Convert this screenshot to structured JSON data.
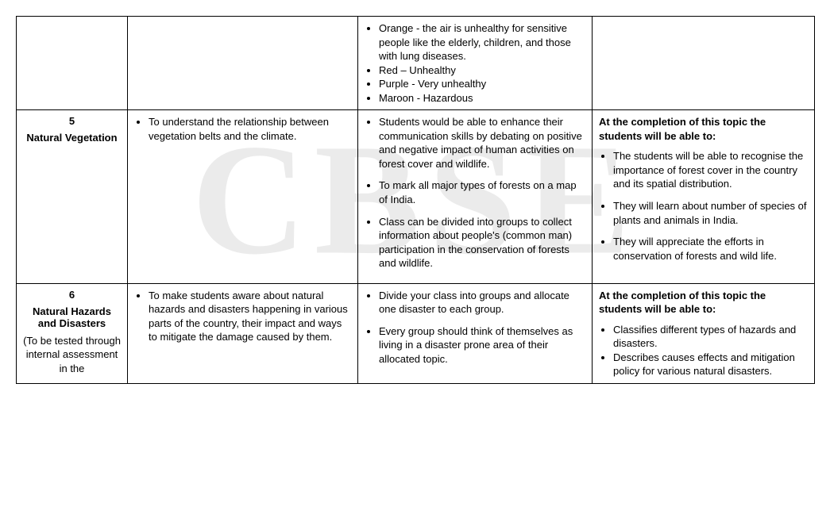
{
  "watermark": "CBSE",
  "table": {
    "rows": [
      {
        "col1": {
          "num": "",
          "title": "",
          "note": ""
        },
        "col2": {
          "bullets": []
        },
        "col3": {
          "bullets": [
            "Orange - the air is unhealthy for sensitive people like the elderly, children, and those with lung diseases.",
            "Red – Unhealthy",
            "Purple - Very unhealthy",
            "Maroon - Hazardous"
          ],
          "tight": true
        },
        "col4": {
          "lead": "",
          "bullets": []
        }
      },
      {
        "col1": {
          "num": "5",
          "title": "Natural Vegetation",
          "note": ""
        },
        "col2": {
          "bullets": [
            "To understand the relationship between vegetation belts and the climate."
          ]
        },
        "col3": {
          "bullets": [
            "Students would be able to enhance their communication skills by debating on positive and negative impact of human activities on forest cover and wildlife.",
            "To mark all major types of forests on a map of India.",
            "Class can be divided into groups to collect information about people's (common man) participation in the conservation of forests and wildlife."
          ]
        },
        "col4": {
          "lead": "At the completion of this topic the students will be able to:",
          "bullets": [
            "The students will be able to recognise the importance of forest cover in the country and its spatial distribution.",
            "They will learn about number of species of plants and animals in India.",
            "They will appreciate the efforts in conservation of forests and wild life."
          ]
        }
      },
      {
        "col1": {
          "num": "6",
          "title": "Natural Hazards and Disasters",
          "note": "(To be tested through internal assessment in the"
        },
        "col2": {
          "bullets": [
            "To make students aware about natural hazards and disasters happening in various parts of the country, their impact and ways to mitigate the damage caused by them."
          ]
        },
        "col3": {
          "bullets": [
            "Divide your class into groups and allocate one disaster to each group.",
            "Every group should think of themselves as living in a disaster prone area of their allocated topic."
          ]
        },
        "col4": {
          "lead": "At the completion of this topic the students will be able to:",
          "bullets": [
            "Classifies different types of hazards and disasters.",
            "Describes causes effects and mitigation policy for various natural disasters."
          ],
          "tight": true
        }
      }
    ]
  }
}
